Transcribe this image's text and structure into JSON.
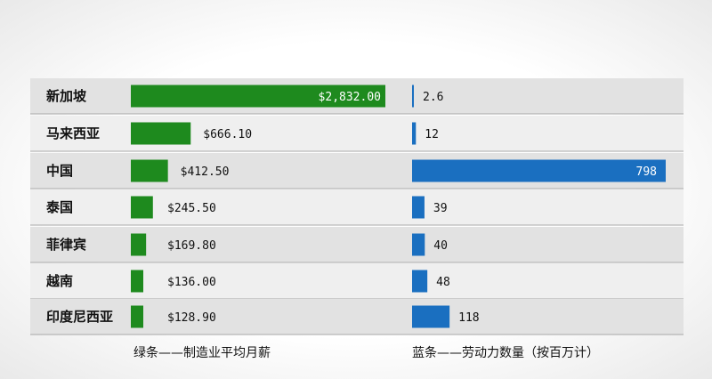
{
  "chart_data": {
    "type": "bar",
    "categories": [
      "新加坡",
      "马来西亚",
      "中国",
      "泰国",
      "菲律宾",
      "越南",
      "印度尼西亚"
    ],
    "series": [
      {
        "name": "绿条——制造业平均月薪",
        "values": [
          2832.0,
          666.1,
          412.5,
          245.5,
          169.8,
          136.0,
          128.9
        ],
        "labels": [
          "$2,832.00",
          "$666.10",
          "$412.50",
          "$245.50",
          "$169.80",
          "$136.00",
          "$128.90"
        ],
        "color": "#1e8a1e"
      },
      {
        "name": "蓝条——劳动力数量（按百万计）",
        "values": [
          2.6,
          12,
          798,
          39,
          40,
          48,
          118
        ],
        "labels": [
          "2.6",
          "12",
          "798",
          "39",
          "40",
          "48",
          "118"
        ],
        "color": "#1a6fc0"
      }
    ]
  },
  "legend": {
    "green": "绿条——制造业平均月薪",
    "blue": "蓝条——劳动力数量（按百万计）"
  }
}
